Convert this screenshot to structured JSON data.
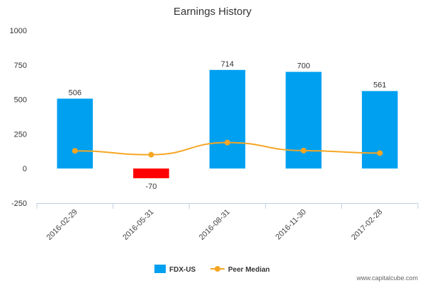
{
  "chart_data": {
    "type": "bar",
    "title": "Earnings History",
    "categories": [
      "2016-02-29",
      "2016-05-31",
      "2016-08-31",
      "2016-11-30",
      "2017-02-28"
    ],
    "series": [
      {
        "name": "FDX-US",
        "type": "bar",
        "values": [
          506,
          -70,
          714,
          700,
          561
        ],
        "value_labels": [
          "506",
          "-70",
          "714",
          "700",
          "561"
        ],
        "color": "#00A0F0",
        "negative_color": "#FF0000"
      },
      {
        "name": "Peer Median",
        "type": "line",
        "values": [
          128,
          100,
          188,
          130,
          112
        ],
        "color": "#F5A623"
      }
    ],
    "yticks": [
      -250,
      0,
      250,
      500,
      750,
      1000
    ],
    "ytick_labels": [
      "-250",
      "0",
      "250",
      "500",
      "750",
      "1000"
    ],
    "ylim": [
      -250,
      1000
    ],
    "xlabel": "",
    "ylabel": "",
    "grid": false,
    "legend_position": "bottom"
  },
  "credit": "www.capitalcube.com"
}
